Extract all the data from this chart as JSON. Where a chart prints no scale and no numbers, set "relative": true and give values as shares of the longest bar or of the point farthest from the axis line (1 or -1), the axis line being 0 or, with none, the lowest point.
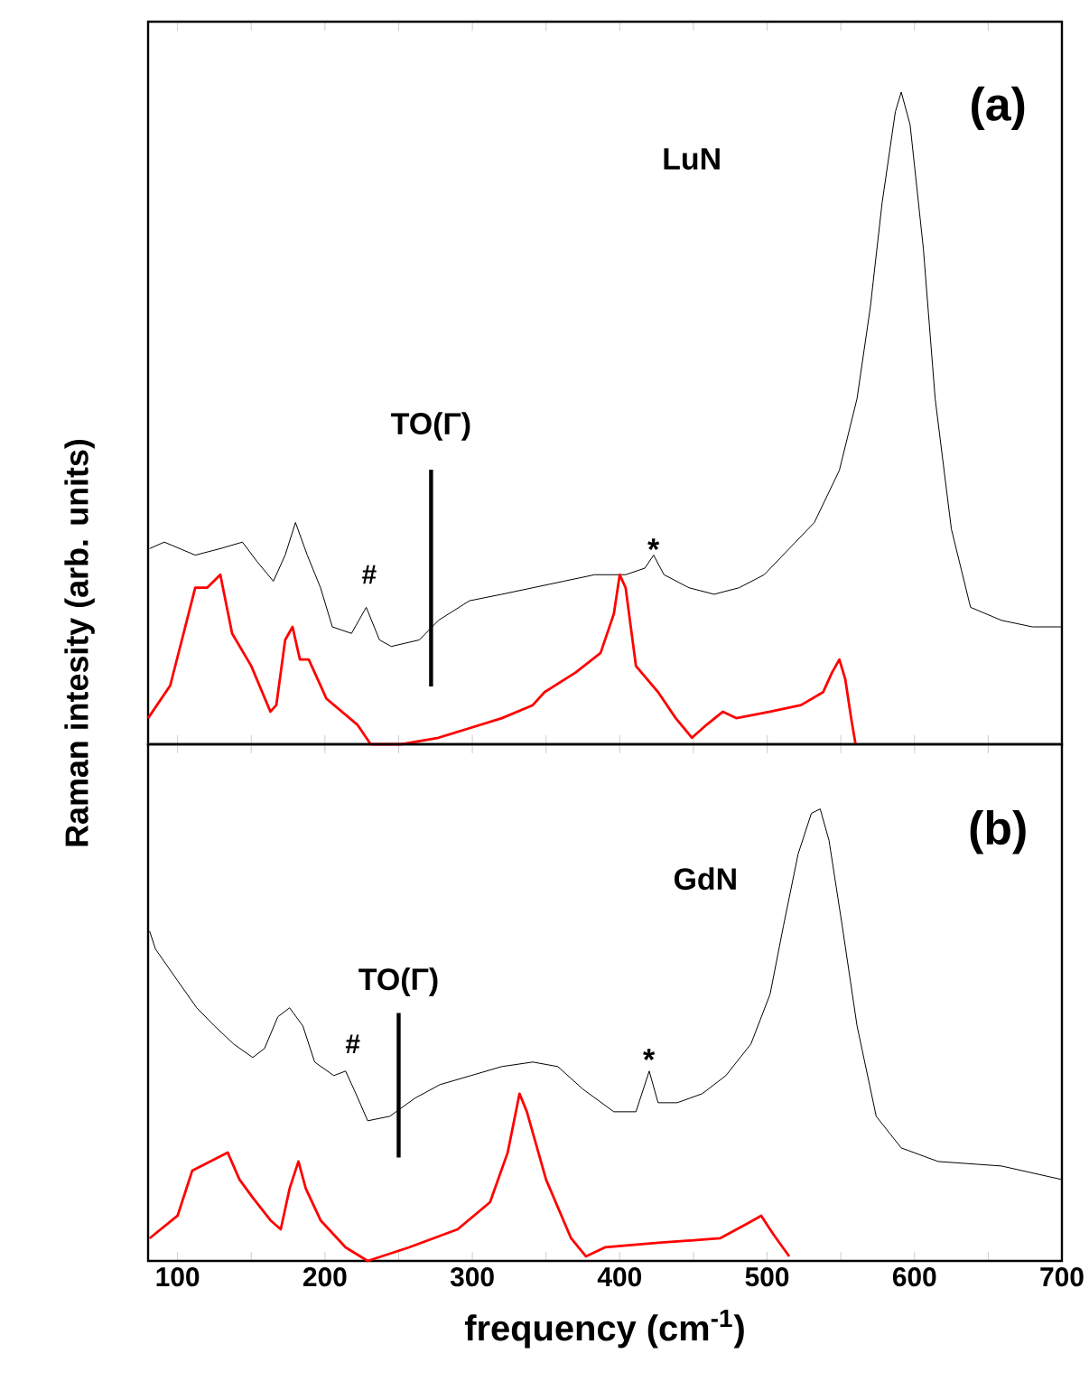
{
  "chart_data": [
    {
      "type": "line",
      "relative": true,
      "ylabel": "Raman intesity (arb. units)",
      "xlim": [
        80,
        700
      ],
      "tick_labels": false,
      "xticks": [
        100,
        {
          "value": 150,
          "label": null
        },
        200,
        {
          "value": 250,
          "label": null
        },
        300,
        {
          "value": 350,
          "label": null
        },
        400,
        {
          "value": 450,
          "label": null
        },
        500,
        {
          "value": 550,
          "label": null
        },
        600,
        {
          "value": 650,
          "label": null
        },
        700
      ],
      "annotations": [
        "(a)",
        "LuN",
        "#",
        "*"
      ],
      "ref_lines": [
        {
          "axis": "x",
          "value": 272,
          "label": "TO(Γ)"
        }
      ],
      "grid": false,
      "marker": "none",
      "line_style": "solid",
      "series": [
        {
          "color": "#000000",
          "x": [
            81,
            91,
            112,
            129,
            144,
            154,
            165,
            173,
            180,
            188,
            197,
            205,
            218,
            228,
            237,
            245,
            264,
            277,
            298,
            320,
            341,
            362,
            383,
            404,
            417,
            423,
            430,
            447,
            464,
            481,
            498,
            515,
            532,
            549,
            561,
            570,
            578,
            587,
            591,
            597,
            606,
            614,
            625,
            638,
            659,
            680,
            700
          ],
          "values": [
            0.3,
            0.31,
            0.29,
            0.3,
            0.31,
            0.28,
            0.25,
            0.29,
            0.34,
            0.29,
            0.24,
            0.18,
            0.17,
            0.21,
            0.16,
            0.15,
            0.16,
            0.19,
            0.22,
            0.23,
            0.24,
            0.25,
            0.26,
            0.26,
            0.27,
            0.29,
            0.26,
            0.24,
            0.23,
            0.24,
            0.26,
            0.3,
            0.34,
            0.42,
            0.53,
            0.67,
            0.83,
            0.97,
            1,
            0.95,
            0.76,
            0.53,
            0.33,
            0.21,
            0.19,
            0.18,
            0.18
          ]
        },
        {
          "color": "#ff0000",
          "x": [
            80,
            95,
            112,
            120,
            129,
            137,
            150,
            163,
            167,
            173,
            178,
            183,
            189,
            201,
            222,
            231,
            252,
            277,
            320,
            341,
            349,
            370,
            387,
            396,
            400,
            404,
            411,
            426,
            438,
            449,
            459,
            470,
            479,
            502,
            523,
            538,
            544,
            549,
            553,
            557,
            560
          ],
          "values": [
            0.04,
            0.09,
            0.24,
            0.24,
            0.26,
            0.17,
            0.12,
            0.05,
            0.06,
            0.16,
            0.18,
            0.13,
            0.13,
            0.07,
            0.03,
            0,
            0,
            0.01,
            0.04,
            0.06,
            0.08,
            0.11,
            0.14,
            0.2,
            0.26,
            0.24,
            0.12,
            0.08,
            0.04,
            0.01,
            0.03,
            0.05,
            0.04,
            0.05,
            0.06,
            0.08,
            0.11,
            0.13,
            0.1,
            0.04,
            0
          ]
        }
      ]
    },
    {
      "type": "line",
      "relative": true,
      "xlabel": "frequency (cm$^{-1}$)",
      "xlim": [
        80,
        700
      ],
      "tick_labels": "x",
      "xticks": [
        100,
        {
          "value": 150,
          "label": null
        },
        200,
        {
          "value": 250,
          "label": null
        },
        300,
        {
          "value": 350,
          "label": null
        },
        400,
        {
          "value": 450,
          "label": null
        },
        500,
        {
          "value": 550,
          "label": null
        },
        600,
        {
          "value": 650,
          "label": null
        },
        700
      ],
      "annotations": [
        "(b)",
        "GdN",
        "#",
        "*"
      ],
      "ref_lines": [
        {
          "axis": "x",
          "value": 250,
          "label": "TO(Γ)"
        }
      ],
      "grid": false,
      "marker": "none",
      "line_style": "solid",
      "series": [
        {
          "color": "#000000",
          "x": [
            81,
            85,
            100,
            113,
            125,
            138,
            151,
            159,
            168,
            176,
            185,
            193,
            206,
            214,
            221,
            229,
            244,
            261,
            278,
            299,
            320,
            341,
            358,
            375,
            396,
            411,
            420,
            426,
            439,
            456,
            472,
            489,
            502,
            511,
            521,
            530,
            536,
            542,
            551,
            561,
            574,
            591,
            616,
            659,
            700
          ],
          "values": [
            0.73,
            0.69,
            0.62,
            0.56,
            0.52,
            0.48,
            0.45,
            0.47,
            0.54,
            0.56,
            0.52,
            0.44,
            0.41,
            0.42,
            0.37,
            0.31,
            0.32,
            0.36,
            0.39,
            0.41,
            0.43,
            0.44,
            0.43,
            0.38,
            0.33,
            0.33,
            0.42,
            0.35,
            0.35,
            0.37,
            0.41,
            0.48,
            0.59,
            0.74,
            0.9,
            0.99,
            1,
            0.93,
            0.74,
            0.52,
            0.32,
            0.25,
            0.22,
            0.21,
            0.18
          ]
        },
        {
          "color": "#ff0000",
          "x": [
            81,
            100,
            110,
            134,
            142,
            151,
            163,
            170,
            176,
            182,
            187,
            197,
            214,
            229,
            257,
            290,
            312,
            324,
            332,
            337,
            350,
            367,
            377,
            390,
            426,
            468,
            485,
            496,
            504,
            515
          ],
          "values": [
            0.05,
            0.1,
            0.2,
            0.24,
            0.18,
            0.14,
            0.09,
            0.07,
            0.16,
            0.22,
            0.16,
            0.09,
            0.03,
            0,
            0.03,
            0.07,
            0.13,
            0.24,
            0.37,
            0.33,
            0.18,
            0.05,
            0.01,
            0.03,
            0.04,
            0.05,
            0.08,
            0.1,
            0.06,
            0.01
          ]
        }
      ]
    }
  ]
}
